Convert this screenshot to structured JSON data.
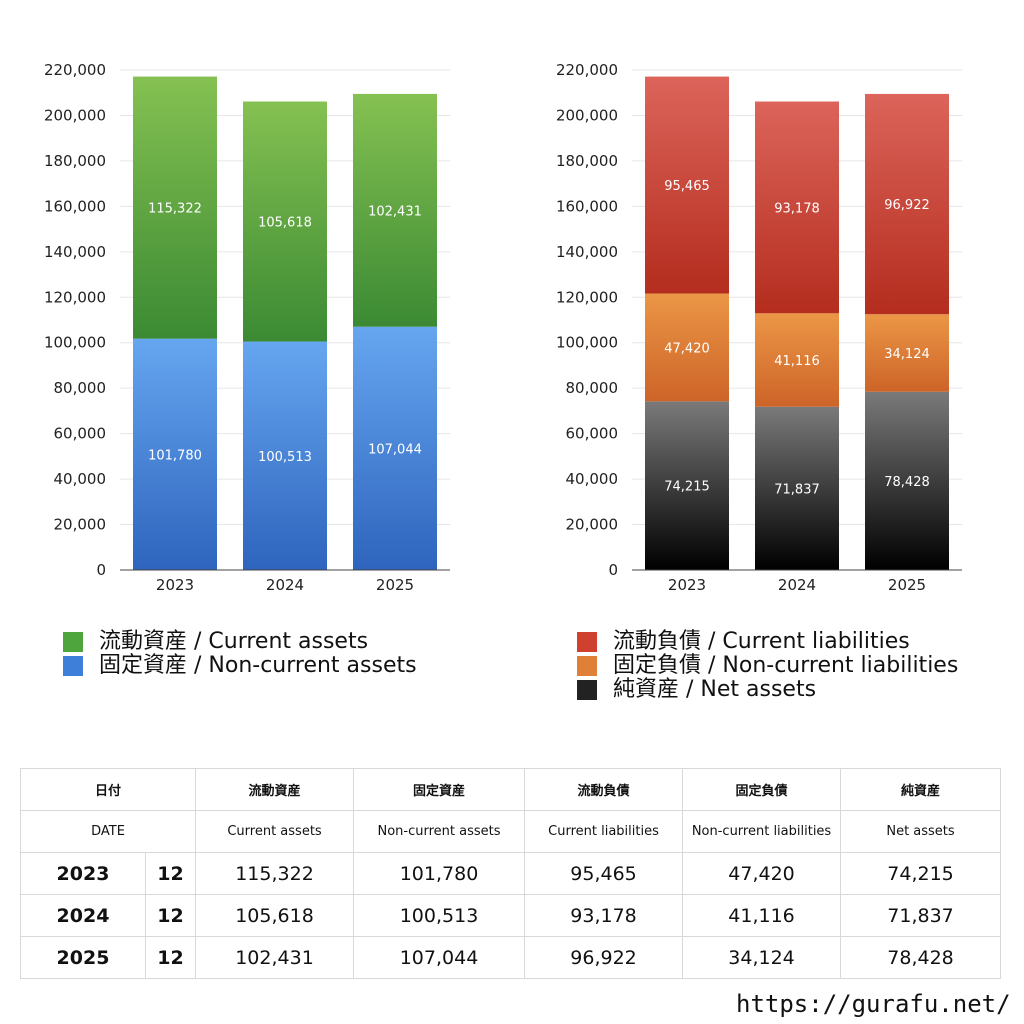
{
  "chart_data": [
    {
      "type": "bar",
      "stacked": true,
      "categories": [
        "2023",
        "2024",
        "2025"
      ],
      "ylim": [
        0,
        220000
      ],
      "yticks": [
        "0",
        "20,000",
        "40,000",
        "60,000",
        "80,000",
        "100,000",
        "120,000",
        "140,000",
        "160,000",
        "180,000",
        "200,000",
        "220,000"
      ],
      "grid": true,
      "legend_position": "bottom",
      "series": [
        {
          "name": "固定資産 / Non-current assets",
          "values": [
            101780,
            100513,
            107044
          ],
          "labels": [
            "101,780",
            "100,513",
            "107,044"
          ],
          "color_top": "#66a6f0",
          "color_bottom": "#2e64bd"
        },
        {
          "name": "流動資産 / Current assets",
          "values": [
            115322,
            105618,
            102431
          ],
          "labels": [
            "115,322",
            "105,618",
            "102,431"
          ],
          "color_top": "#85c152",
          "color_bottom": "#3b8a33"
        }
      ],
      "legend": [
        {
          "label": "流動資産 / Current assets",
          "color": "#4ea43d"
        },
        {
          "label": "固定資産 / Non-current assets",
          "color": "#3d7fd9"
        }
      ]
    },
    {
      "type": "bar",
      "stacked": true,
      "categories": [
        "2023",
        "2024",
        "2025"
      ],
      "ylim": [
        0,
        220000
      ],
      "yticks": [
        "0",
        "20,000",
        "40,000",
        "60,000",
        "80,000",
        "100,000",
        "120,000",
        "140,000",
        "160,000",
        "180,000",
        "200,000",
        "220,000"
      ],
      "grid": true,
      "legend_position": "bottom",
      "series": [
        {
          "name": "純資産 / Net assets",
          "values": [
            74215,
            71837,
            78428
          ],
          "labels": [
            "74,215",
            "71,837",
            "78,428"
          ],
          "color_top": "#7a7a7a",
          "color_bottom": "#000000"
        },
        {
          "name": "固定負債 / Non-current liabilities",
          "values": [
            47420,
            41116,
            34124
          ],
          "labels": [
            "47,420",
            "41,116",
            "34,124"
          ],
          "color_top": "#eb9646",
          "color_bottom": "#cd6428"
        },
        {
          "name": "流動負債 / Current liabilities",
          "values": [
            95465,
            93178,
            96922
          ],
          "labels": [
            "95,465",
            "93,178",
            "96,922"
          ],
          "color_top": "#dc645a",
          "color_bottom": "#b42d1e"
        }
      ],
      "legend": [
        {
          "label": "流動負債 / Current liabilities",
          "color": "#d0402f"
        },
        {
          "label": "固定負債 / Non-current liabilities",
          "color": "#e07f37"
        },
        {
          "label": "純資産 / Net assets",
          "color": "#222222"
        }
      ]
    }
  ],
  "table": {
    "header_jp": [
      "日付",
      "流動資産",
      "固定資産",
      "流動負債",
      "固定負債",
      "純資産"
    ],
    "header_en": [
      "DATE",
      "Current assets",
      "Non-current assets",
      "Current liabilities",
      "Non-current liabilities",
      "Net assets"
    ],
    "rows": [
      {
        "year": "2023",
        "month": "12",
        "values": [
          "115,322",
          "101,780",
          "95,465",
          "47,420",
          "74,215"
        ]
      },
      {
        "year": "2024",
        "month": "12",
        "values": [
          "105,618",
          "100,513",
          "93,178",
          "41,116",
          "71,837"
        ]
      },
      {
        "year": "2025",
        "month": "12",
        "values": [
          "102,431",
          "107,044",
          "96,922",
          "34,124",
          "78,428"
        ]
      }
    ]
  },
  "footer": {
    "url": "https://gurafu.net/"
  }
}
